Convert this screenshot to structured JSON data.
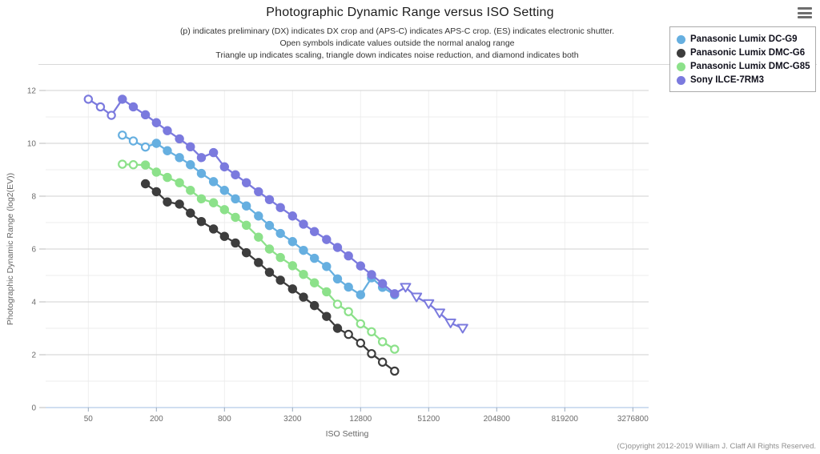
{
  "page": {
    "title": "Photographic Dynamic Range versus ISO Setting",
    "subtitle_lines": [
      "(p) indicates preliminary (DX) indicates DX crop and (APS-C) indicates APS-C crop. (ES) indicates electronic shutter.",
      "Open symbols indicate values outside the normal analog range",
      "Triangle up indicates scaling, triangle down indicates noise reduction, and diamond indicates both"
    ],
    "copyright": "(C)opyright 2012-2019 William J. Claff All Rights Reserved."
  },
  "legend": {
    "position": "top-right",
    "items": [
      {
        "label": "Panasonic Lumix DC-G9",
        "color": "#66afe0"
      },
      {
        "label": "Panasonic Lumix DMC-G6",
        "color": "#3d3d3d"
      },
      {
        "label": "Panasonic Lumix DMC-G85",
        "color": "#8ce18a"
      },
      {
        "label": "Sony ILCE-7RM3",
        "color": "#7b7ade"
      }
    ]
  },
  "chart_data": {
    "type": "line",
    "title": "Photographic Dynamic Range versus ISO Setting",
    "xlabel": "ISO Setting",
    "ylabel": "Photographic Dynamic Range (log2(EV))",
    "x_scale": "log4",
    "x_ticks": [
      50,
      200,
      800,
      3200,
      12800,
      51200,
      204800,
      819200,
      3276800
    ],
    "ylim": [
      0,
      12
    ],
    "y_major_ticks": [
      0,
      2,
      4,
      6,
      8,
      10,
      12
    ],
    "y_minor_ticks": [
      1,
      3,
      5,
      7,
      9,
      11
    ],
    "grid": true,
    "legend_position": "top-right",
    "marker_codes": {
      "f": "filled-circle",
      "o": "open-circle",
      "v": "open-triangle-down"
    },
    "series": [
      {
        "name": "Panasonic Lumix DC-G9",
        "color": "#66afe0",
        "points": [
          [
            100,
            10.31,
            "o"
          ],
          [
            125,
            10.09,
            "o"
          ],
          [
            160,
            9.86,
            "o"
          ],
          [
            200,
            10.0,
            "f"
          ],
          [
            250,
            9.72,
            "f"
          ],
          [
            320,
            9.46,
            "f"
          ],
          [
            400,
            9.19,
            "f"
          ],
          [
            500,
            8.86,
            "f"
          ],
          [
            640,
            8.55,
            "f"
          ],
          [
            800,
            8.22,
            "f"
          ],
          [
            1000,
            7.9,
            "f"
          ],
          [
            1250,
            7.63,
            "f"
          ],
          [
            1600,
            7.25,
            "f"
          ],
          [
            2000,
            6.89,
            "f"
          ],
          [
            2500,
            6.59,
            "f"
          ],
          [
            3200,
            6.28,
            "f"
          ],
          [
            4000,
            5.95,
            "f"
          ],
          [
            5000,
            5.65,
            "f"
          ],
          [
            6400,
            5.34,
            "f"
          ],
          [
            8000,
            4.87,
            "f"
          ],
          [
            10000,
            4.56,
            "f"
          ],
          [
            12800,
            4.27,
            "f"
          ],
          [
            16000,
            4.91,
            "f"
          ],
          [
            20000,
            4.55,
            "f"
          ],
          [
            25600,
            4.27,
            "f"
          ]
        ]
      },
      {
        "name": "Panasonic Lumix DMC-G6",
        "color": "#3d3d3d",
        "points": [
          [
            160,
            8.47,
            "f"
          ],
          [
            200,
            8.17,
            "f"
          ],
          [
            250,
            7.78,
            "f"
          ],
          [
            320,
            7.7,
            "f"
          ],
          [
            400,
            7.36,
            "f"
          ],
          [
            500,
            7.04,
            "f"
          ],
          [
            640,
            6.76,
            "f"
          ],
          [
            800,
            6.48,
            "f"
          ],
          [
            1000,
            6.23,
            "f"
          ],
          [
            1250,
            5.86,
            "f"
          ],
          [
            1600,
            5.49,
            "f"
          ],
          [
            2000,
            5.12,
            "f"
          ],
          [
            2500,
            4.82,
            "f"
          ],
          [
            3200,
            4.49,
            "f"
          ],
          [
            4000,
            4.18,
            "f"
          ],
          [
            5000,
            3.86,
            "f"
          ],
          [
            6400,
            3.45,
            "f"
          ],
          [
            8000,
            3.0,
            "f"
          ],
          [
            10000,
            2.77,
            "o"
          ],
          [
            12800,
            2.44,
            "o"
          ],
          [
            16000,
            2.04,
            "o"
          ],
          [
            20000,
            1.72,
            "o"
          ],
          [
            25600,
            1.38,
            "o"
          ]
        ]
      },
      {
        "name": "Panasonic Lumix DMC-G85",
        "color": "#8ce18a",
        "points": [
          [
            100,
            9.21,
            "o"
          ],
          [
            125,
            9.19,
            "o"
          ],
          [
            160,
            9.18,
            "f"
          ],
          [
            200,
            8.91,
            "f"
          ],
          [
            250,
            8.71,
            "f"
          ],
          [
            320,
            8.51,
            "f"
          ],
          [
            400,
            8.22,
            "f"
          ],
          [
            500,
            7.9,
            "f"
          ],
          [
            640,
            7.75,
            "f"
          ],
          [
            800,
            7.49,
            "f"
          ],
          [
            1000,
            7.2,
            "f"
          ],
          [
            1250,
            6.9,
            "f"
          ],
          [
            1600,
            6.45,
            "f"
          ],
          [
            2000,
            6.0,
            "f"
          ],
          [
            2500,
            5.68,
            "f"
          ],
          [
            3200,
            5.37,
            "f"
          ],
          [
            4000,
            5.04,
            "f"
          ],
          [
            5000,
            4.72,
            "f"
          ],
          [
            6400,
            4.38,
            "f"
          ],
          [
            8000,
            3.91,
            "o"
          ],
          [
            10000,
            3.63,
            "o"
          ],
          [
            12800,
            3.17,
            "o"
          ],
          [
            16000,
            2.87,
            "o"
          ],
          [
            20000,
            2.49,
            "o"
          ],
          [
            25600,
            2.21,
            "o"
          ]
        ]
      },
      {
        "name": "Sony ILCE-7RM3",
        "color": "#7b7ade",
        "points": [
          [
            50,
            11.67,
            "o"
          ],
          [
            64,
            11.38,
            "o"
          ],
          [
            80,
            11.06,
            "o"
          ],
          [
            100,
            11.67,
            "f"
          ],
          [
            125,
            11.38,
            "f"
          ],
          [
            160,
            11.08,
            "f"
          ],
          [
            200,
            10.78,
            "f"
          ],
          [
            250,
            10.48,
            "f"
          ],
          [
            320,
            10.17,
            "f"
          ],
          [
            400,
            9.87,
            "f"
          ],
          [
            500,
            9.46,
            "f"
          ],
          [
            640,
            9.65,
            "f"
          ],
          [
            800,
            9.11,
            "f"
          ],
          [
            1000,
            8.81,
            "f"
          ],
          [
            1250,
            8.51,
            "f"
          ],
          [
            1600,
            8.17,
            "f"
          ],
          [
            2000,
            7.87,
            "f"
          ],
          [
            2500,
            7.57,
            "f"
          ],
          [
            3200,
            7.25,
            "f"
          ],
          [
            4000,
            6.94,
            "f"
          ],
          [
            5000,
            6.66,
            "f"
          ],
          [
            6400,
            6.36,
            "f"
          ],
          [
            8000,
            6.06,
            "f"
          ],
          [
            10000,
            5.74,
            "f"
          ],
          [
            12800,
            5.36,
            "f"
          ],
          [
            16000,
            5.03,
            "f"
          ],
          [
            20000,
            4.69,
            "f"
          ],
          [
            25600,
            4.31,
            "f"
          ],
          [
            32000,
            4.55,
            "v"
          ],
          [
            40000,
            4.18,
            "v"
          ],
          [
            51200,
            3.93,
            "v"
          ],
          [
            64000,
            3.58,
            "v"
          ],
          [
            80000,
            3.2,
            "v"
          ],
          [
            102400,
            3.0,
            "v"
          ]
        ]
      }
    ]
  }
}
